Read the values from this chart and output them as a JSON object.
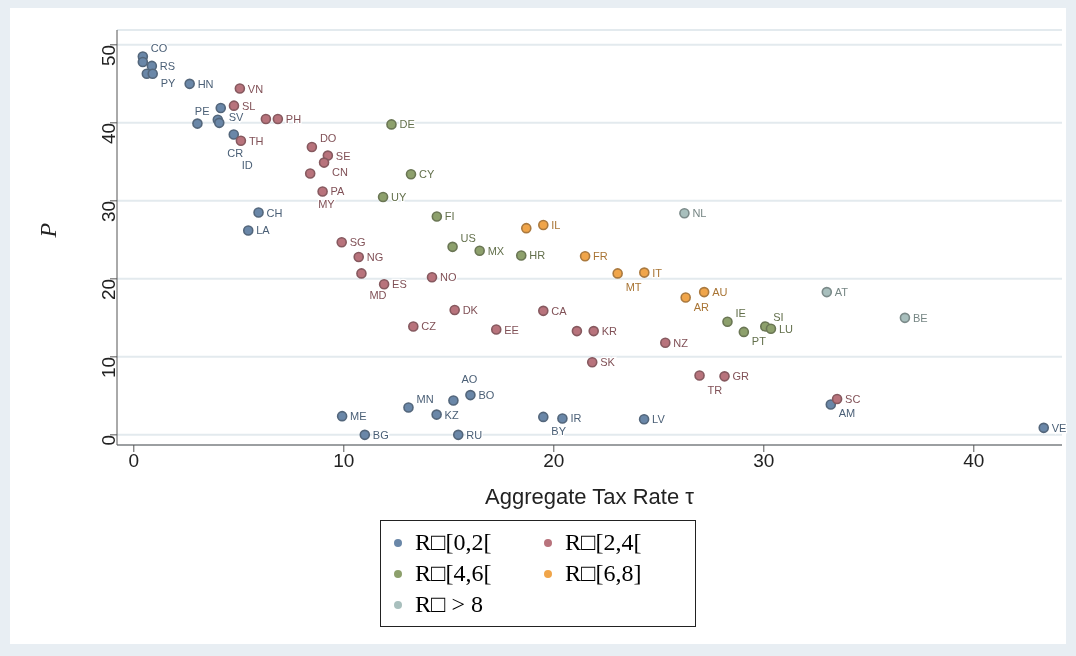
{
  "chart_data": {
    "type": "scatter",
    "xlabel": "Aggregate Tax Rate τ",
    "ylabel": "P",
    "xlim": [
      -0.8,
      44.2
    ],
    "xticks": [
      0,
      10,
      20,
      30,
      40
    ],
    "ylim": [
      -1.3,
      51.9
    ],
    "yticks": [
      0,
      10,
      20,
      30,
      40,
      50
    ],
    "grid": "y",
    "legend": "bottom",
    "marker": "circle",
    "series": [
      {
        "name": "R□[0,2[",
        "color": "#6a87a8",
        "x": [
          0.43,
          0.43,
          0.86,
          0.62,
          0.9,
          2.66,
          4.14,
          4.0,
          4.07,
          3.03,
          4.76,
          5.94,
          5.45,
          9.92,
          11.0,
          13.08,
          14.42,
          15.22,
          16.03,
          15.45,
          19.5,
          20.41,
          24.3,
          33.19,
          43.33
        ],
        "values": [
          48.5,
          47.8,
          47.3,
          46.3,
          46.3,
          45.0,
          41.9,
          40.4,
          40.0,
          39.9,
          38.5,
          28.5,
          26.2,
          2.4,
          0,
          3.5,
          2.6,
          4.4,
          5.1,
          0,
          2.3,
          2.1,
          2.0,
          3.9,
          0.9
        ]
      },
      {
        "name": "R□[2,4[",
        "color": "#b8737c",
        "x": [
          5.05,
          4.77,
          6.29,
          6.86,
          5.1,
          8.48,
          9.24,
          9.06,
          8.4,
          8.99,
          9.9,
          10.71,
          10.84,
          11.92,
          14.2,
          15.28,
          19.5,
          13.31,
          17.26,
          21.1,
          21.9,
          25.31,
          21.83,
          26.94,
          28.13,
          33.49
        ],
        "values": [
          44.4,
          42.2,
          40.5,
          40.5,
          37.7,
          36.9,
          35.8,
          34.9,
          33.5,
          31.2,
          24.7,
          22.8,
          20.7,
          19.3,
          20.2,
          16.0,
          15.9,
          13.9,
          13.5,
          13.3,
          13.3,
          11.8,
          9.3,
          7.6,
          7.5,
          4.6
        ]
      },
      {
        "name": "R□[4,6[",
        "color": "#8da06c",
        "x": [
          12.27,
          13.2,
          11.87,
          14.43,
          15.18,
          16.47,
          18.45,
          28.27,
          29.05,
          30.07,
          30.34
        ],
        "values": [
          39.8,
          33.4,
          30.5,
          28.0,
          24.1,
          23.6,
          23.0,
          14.5,
          13.2,
          13.9,
          13.6
        ]
      },
      {
        "name": "R□[6,8]",
        "color": "#f0a54a",
        "x": [
          18.69,
          19.5,
          21.49,
          23.04,
          24.31,
          26.28,
          27.16
        ],
        "values": [
          26.5,
          26.9,
          22.9,
          20.7,
          20.8,
          17.6,
          18.3
        ]
      },
      {
        "name": "R□ > 8",
        "color": "#a8bfbd",
        "x": [
          26.22,
          33.0,
          36.72
        ],
        "values": [
          28.4,
          18.3,
          15.0
        ]
      }
    ],
    "annotations": [
      {
        "text": "CO",
        "x": 0.43,
        "y": 48.5
      },
      {
        "text": "RS",
        "x": 0.86,
        "y": 47.3
      },
      {
        "text": "PY",
        "x": 0.9,
        "y": 46.3
      },
      {
        "text": "HN",
        "x": 2.66,
        "y": 45.0
      },
      {
        "text": "SV",
        "x": 4.14,
        "y": 41.9
      },
      {
        "text": "PE",
        "x": 4.0,
        "y": 40.4
      },
      {
        "text": "CR",
        "x": 4.07,
        "y": 40.0
      },
      {
        "text": "ID",
        "x": 4.76,
        "y": 38.5
      },
      {
        "text": "CH",
        "x": 5.94,
        "y": 28.5
      },
      {
        "text": "LA",
        "x": 5.45,
        "y": 26.2
      },
      {
        "text": "ME",
        "x": 9.92,
        "y": 2.4
      },
      {
        "text": "BG",
        "x": 11.0,
        "y": 0
      },
      {
        "text": "MN",
        "x": 13.08,
        "y": 3.5
      },
      {
        "text": "KZ",
        "x": 14.42,
        "y": 2.6
      },
      {
        "text": "AO",
        "x": 15.22,
        "y": 4.4
      },
      {
        "text": "BO",
        "x": 16.03,
        "y": 5.1
      },
      {
        "text": "RU",
        "x": 15.45,
        "y": 0
      },
      {
        "text": "BY",
        "x": 19.5,
        "y": 2.3
      },
      {
        "text": "IR",
        "x": 20.41,
        "y": 2.1
      },
      {
        "text": "LV",
        "x": 24.3,
        "y": 2.0
      },
      {
        "text": "AM",
        "x": 33.19,
        "y": 3.9
      },
      {
        "text": "VE",
        "x": 43.33,
        "y": 0.9
      },
      {
        "text": "VN",
        "x": 5.05,
        "y": 44.4
      },
      {
        "text": "SL",
        "x": 4.77,
        "y": 42.2
      },
      {
        "text": "PH",
        "x": 6.86,
        "y": 40.5
      },
      {
        "text": "TH",
        "x": 5.1,
        "y": 37.7
      },
      {
        "text": "DO",
        "x": 8.48,
        "y": 36.9
      },
      {
        "text": "SE",
        "x": 9.24,
        "y": 35.8
      },
      {
        "text": "CN",
        "x": 9.06,
        "y": 34.9
      },
      {
        "text": "MY",
        "x": 8.4,
        "y": 33.5
      },
      {
        "text": "PA",
        "x": 8.99,
        "y": 31.2
      },
      {
        "text": "SG",
        "x": 9.9,
        "y": 24.7
      },
      {
        "text": "NG",
        "x": 10.71,
        "y": 22.8
      },
      {
        "text": "MD",
        "x": 10.84,
        "y": 20.7
      },
      {
        "text": "ES",
        "x": 11.92,
        "y": 19.3
      },
      {
        "text": "NO",
        "x": 14.2,
        "y": 20.2
      },
      {
        "text": "DK",
        "x": 15.28,
        "y": 16.0
      },
      {
        "text": "CA",
        "x": 19.5,
        "y": 15.9
      },
      {
        "text": "CZ",
        "x": 13.31,
        "y": 13.9
      },
      {
        "text": "EE",
        "x": 17.26,
        "y": 13.5
      },
      {
        "text": "KR",
        "x": 21.9,
        "y": 13.3
      },
      {
        "text": "NZ",
        "x": 25.31,
        "y": 11.8
      },
      {
        "text": "SK",
        "x": 21.83,
        "y": 9.3
      },
      {
        "text": "TR",
        "x": 26.94,
        "y": 7.6
      },
      {
        "text": "GR",
        "x": 28.13,
        "y": 7.5
      },
      {
        "text": "SC",
        "x": 33.49,
        "y": 4.6
      },
      {
        "text": "DE",
        "x": 12.27,
        "y": 39.8
      },
      {
        "text": "CY",
        "x": 13.2,
        "y": 33.4
      },
      {
        "text": "UY",
        "x": 11.87,
        "y": 30.5
      },
      {
        "text": "FI",
        "x": 14.43,
        "y": 28.0
      },
      {
        "text": "US",
        "x": 15.18,
        "y": 24.1
      },
      {
        "text": "MX",
        "x": 16.47,
        "y": 23.6
      },
      {
        "text": "HR",
        "x": 18.45,
        "y": 23.0
      },
      {
        "text": "IE",
        "x": 28.27,
        "y": 14.5
      },
      {
        "text": "PT",
        "x": 29.05,
        "y": 13.2
      },
      {
        "text": "SI",
        "x": 30.07,
        "y": 13.9
      },
      {
        "text": "LU",
        "x": 30.34,
        "y": 13.6
      },
      {
        "text": "IL",
        "x": 19.5,
        "y": 26.9
      },
      {
        "text": "FR",
        "x": 21.49,
        "y": 22.9
      },
      {
        "text": "MT",
        "x": 23.04,
        "y": 20.7
      },
      {
        "text": "IT",
        "x": 24.31,
        "y": 20.8
      },
      {
        "text": "AR",
        "x": 26.28,
        "y": 17.6
      },
      {
        "text": "AU",
        "x": 27.16,
        "y": 18.3
      },
      {
        "text": "NL",
        "x": 26.22,
        "y": 28.4
      },
      {
        "text": "AT",
        "x": 33.0,
        "y": 18.3
      },
      {
        "text": "BE",
        "x": 36.72,
        "y": 15.0
      }
    ]
  }
}
